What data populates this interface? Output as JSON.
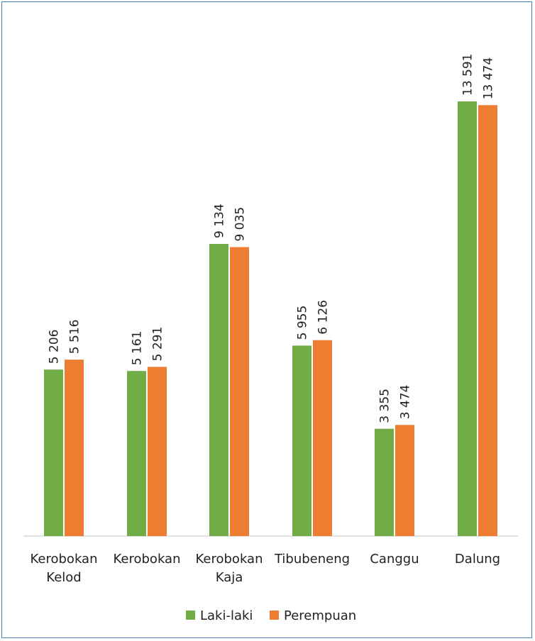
{
  "chart_data": {
    "type": "bar",
    "categories": [
      [
        "Kerobokan",
        "Kelod"
      ],
      [
        "Kerobokan"
      ],
      [
        "Kerobokan",
        "Kaja"
      ],
      [
        "Tibubeneng"
      ],
      [
        "Canggu"
      ],
      [
        "Dalung"
      ]
    ],
    "series": [
      {
        "name": "Laki-laki",
        "color": "#70ad47",
        "values": [
          5206,
          5161,
          9134,
          5955,
          3355,
          13591
        ],
        "labels": [
          "5 206",
          "5 161",
          "9 134",
          "5 955",
          "3 355",
          "13 591"
        ]
      },
      {
        "name": "Perempuan",
        "color": "#ed7d31",
        "values": [
          5516,
          5291,
          9035,
          6126,
          3474,
          13474
        ],
        "labels": [
          "5 516",
          "5 291",
          "9 035",
          "6 126",
          "3 474",
          "13 474"
        ]
      }
    ],
    "ylim": [
      0,
      13591
    ],
    "grid": false,
    "legend": "bottom"
  }
}
